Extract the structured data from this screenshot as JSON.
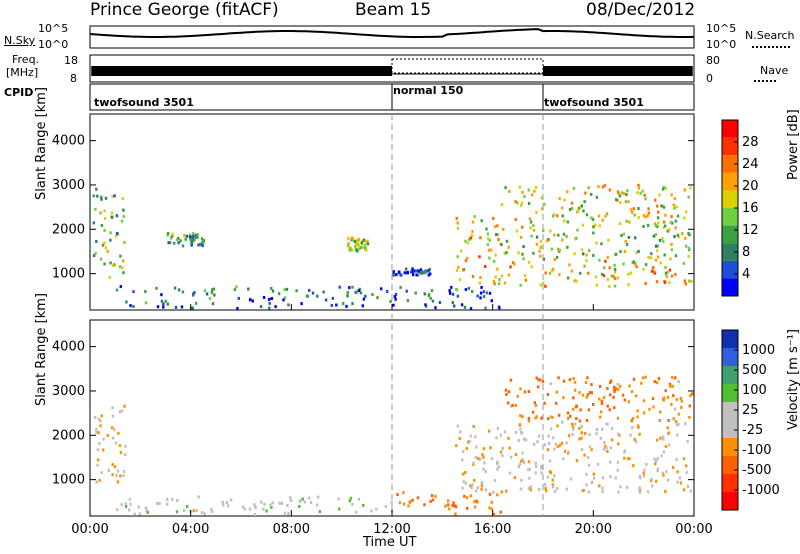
{
  "header": {
    "station": "Prince George (fitACF)",
    "beam": "Beam 15",
    "date": "08/Dec/2012"
  },
  "noise_panel": {
    "left_label": "N.Sky",
    "left_ticks": [
      "10^5",
      "10^0"
    ],
    "right_ticks": [
      "10^5",
      "10^0"
    ],
    "right_label": "N.Search"
  },
  "freq_panel": {
    "left_label_line1": "Freq.",
    "left_label_line2": "[MHz]",
    "left_ticks": [
      "18",
      "8"
    ],
    "right_ticks": [
      "80",
      "0"
    ],
    "right_label": "Nave"
  },
  "cpid_panel": {
    "label": "CPID",
    "segments": [
      {
        "name": "twofsound 3501",
        "start_hour": 0
      },
      {
        "name": "normal 150",
        "start_hour": 12
      },
      {
        "name": "twofsound 3501",
        "start_hour": 18
      }
    ]
  },
  "power_panel": {
    "ylabel": "Slant Range [km]",
    "yticks": [
      "4000",
      "3000",
      "2000",
      "1000"
    ],
    "colorbar_label": "Power [dB]",
    "colorbar_ticks": [
      "28",
      "24",
      "20",
      "16",
      "12",
      "8",
      "4"
    ],
    "colorbar_colors": [
      "#0000ff",
      "#1f4fd8",
      "#2f7f60",
      "#3aa040",
      "#70d040",
      "#d8d000",
      "#ffa000",
      "#ff7000",
      "#ff3000",
      "#ff0000"
    ]
  },
  "velocity_panel": {
    "ylabel": "Slant Range [km]",
    "yticks": [
      "4000",
      "3000",
      "2000",
      "1000"
    ],
    "colorbar_label": "Velocity [m s⁻¹]",
    "colorbar_ticks": [
      "1000",
      "500",
      "100",
      "25",
      "-25",
      "-100",
      "-500",
      "-1000"
    ],
    "colorbar_colors": [
      "#1030b0",
      "#3060e0",
      "#40a070",
      "#50c030",
      "#c0c0c0",
      "#c0c0c0",
      "#ff9000",
      "#ff6000",
      "#ff3000",
      "#ff0000"
    ]
  },
  "xaxis": {
    "ticks": [
      "00:00",
      "04:00",
      "08:00",
      "12:00",
      "16:00",
      "20:00",
      "00:00"
    ],
    "label": "Time UT"
  },
  "chart_data": {
    "type": "heatmap",
    "title": "Prince George (fitACF)",
    "subtitle": "Beam 15 — 08/Dec/2012",
    "xlabel": "Time UT",
    "ylabel": "Slant Range [km]",
    "xlim_hours": [
      0,
      24
    ],
    "ylim_km": [
      180,
      4600
    ],
    "panels": [
      {
        "name": "Power",
        "unit": "dB",
        "colorbar_range": [
          0,
          30
        ],
        "echo_regions": [
          {
            "t_start": 0.1,
            "t_end": 1.4,
            "r_min": 900,
            "r_max": 2900,
            "level": 12
          },
          {
            "t_start": 1.0,
            "t_end": 16.3,
            "r_min": 200,
            "r_max": 700,
            "level": 6
          },
          {
            "t_start": 3.0,
            "t_end": 4.5,
            "r_min": 1600,
            "r_max": 1900,
            "level": 10
          },
          {
            "t_start": 10.2,
            "t_end": 11.0,
            "r_min": 1500,
            "r_max": 1800,
            "level": 14
          },
          {
            "t_start": 12.0,
            "t_end": 13.5,
            "r_min": 950,
            "r_max": 1100,
            "level": 4
          },
          {
            "t_start": 14.5,
            "t_end": 16.3,
            "r_min": 700,
            "r_max": 2300,
            "level": 18
          },
          {
            "t_start": 16.3,
            "t_end": 23.9,
            "r_min": 700,
            "r_max": 1300,
            "level": 18
          },
          {
            "t_start": 16.3,
            "t_end": 23.9,
            "r_min": 1300,
            "r_max": 2000,
            "level": 14
          },
          {
            "t_start": 16.3,
            "t_end": 23.9,
            "r_min": 2000,
            "r_max": 3000,
            "level": 16
          }
        ]
      },
      {
        "name": "Velocity",
        "unit": "m s⁻¹",
        "colorbar_range": [
          -1000,
          1000
        ],
        "echo_regions": [
          {
            "t_start": 0.1,
            "t_end": 1.4,
            "r_min": 900,
            "r_max": 2700,
            "level": 0
          },
          {
            "t_start": 1.0,
            "t_end": 12.0,
            "r_min": 200,
            "r_max": 600,
            "level": 50
          },
          {
            "t_start": 12.0,
            "t_end": 16.3,
            "r_min": 200,
            "r_max": 700,
            "level": -100
          },
          {
            "t_start": 14.5,
            "t_end": 23.9,
            "r_min": 700,
            "r_max": 2300,
            "level": 0
          },
          {
            "t_start": 16.3,
            "t_end": 23.9,
            "r_min": 2300,
            "r_max": 3300,
            "level": -100
          }
        ]
      }
    ]
  }
}
